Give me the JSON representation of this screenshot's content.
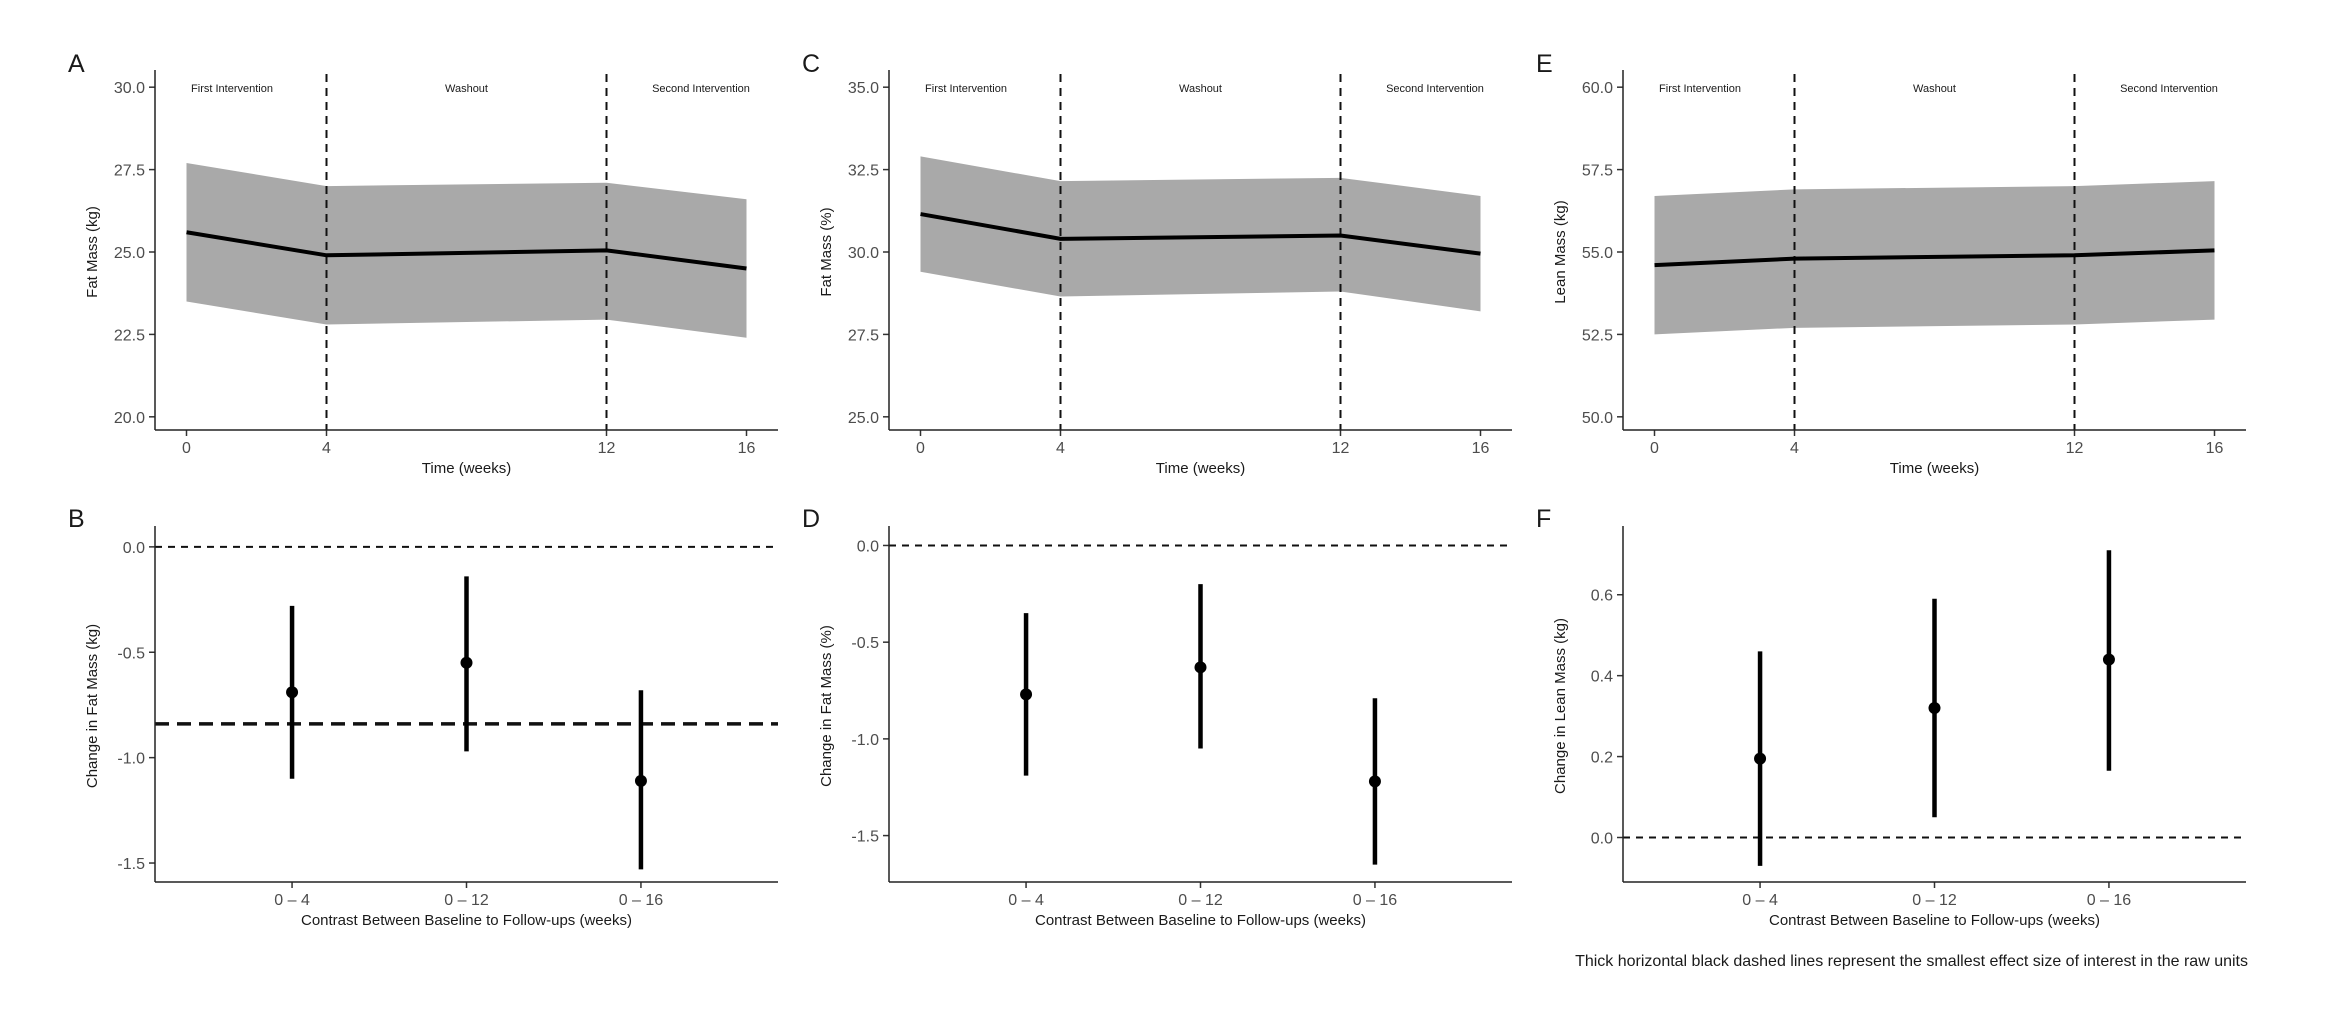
{
  "footnote": "Thick horizontal black dashed lines represent the smallest effect size of interest in the raw units",
  "chart_data": [
    {
      "panel": "A",
      "type": "line",
      "xlabel": "Time (weeks)",
      "ylabel": "Fat Mass (kg)",
      "x_ticks": [
        "0",
        "4",
        "12",
        "16"
      ],
      "y_ticks": [
        "20.0",
        "22.5",
        "25.0",
        "27.5",
        "30.0"
      ],
      "ylim": [
        19.6,
        30.4
      ],
      "xlim": [
        -0.9,
        16.9
      ],
      "phases": [
        "First Intervention",
        "Washout",
        "Second Intervention"
      ],
      "vlines": [
        4,
        12
      ],
      "x": [
        0,
        4,
        12,
        16
      ],
      "mean": [
        25.6,
        24.9,
        25.05,
        24.5
      ],
      "lower": [
        23.5,
        22.8,
        22.95,
        22.4
      ],
      "upper": [
        27.7,
        27.0,
        27.1,
        26.6
      ]
    },
    {
      "panel": "C",
      "type": "line",
      "xlabel": "Time (weeks)",
      "ylabel": "Fat Mass (%)",
      "x_ticks": [
        "0",
        "4",
        "12",
        "16"
      ],
      "y_ticks": [
        "25.0",
        "27.5",
        "30.0",
        "32.5",
        "35.0"
      ],
      "ylim": [
        24.6,
        35.4
      ],
      "xlim": [
        -0.9,
        16.9
      ],
      "phases": [
        "First Intervention",
        "Washout",
        "Second Intervention"
      ],
      "vlines": [
        4,
        12
      ],
      "x": [
        0,
        4,
        12,
        16
      ],
      "mean": [
        31.15,
        30.4,
        30.5,
        29.95
      ],
      "lower": [
        29.4,
        28.65,
        28.8,
        28.2
      ],
      "upper": [
        32.9,
        32.15,
        32.25,
        31.7
      ]
    },
    {
      "panel": "E",
      "type": "line",
      "xlabel": "Time (weeks)",
      "ylabel": "Lean Mass (kg)",
      "x_ticks": [
        "0",
        "4",
        "12",
        "16"
      ],
      "y_ticks": [
        "50.0",
        "52.5",
        "55.0",
        "57.5",
        "60.0"
      ],
      "ylim": [
        49.6,
        60.4
      ],
      "xlim": [
        -0.9,
        16.9
      ],
      "phases": [
        "First Intervention",
        "Washout",
        "Second Intervention"
      ],
      "vlines": [
        4,
        12
      ],
      "x": [
        0,
        4,
        12,
        16
      ],
      "mean": [
        54.6,
        54.8,
        54.9,
        55.05
      ],
      "lower": [
        52.5,
        52.7,
        52.8,
        52.95
      ],
      "upper": [
        56.7,
        56.9,
        57.0,
        57.15
      ]
    },
    {
      "panel": "B",
      "type": "scatter",
      "xlabel": "Contrast Between Baseline to Follow-ups (weeks)",
      "ylabel": "Change in Fat Mass (kg)",
      "categories": [
        "0 – 4",
        "0 – 12",
        "0 – 16"
      ],
      "y_ticks": [
        "-1.5",
        "-1.0",
        "-0.5",
        "0.0"
      ],
      "ylim": [
        -1.59,
        0.08
      ],
      "estimate": [
        -0.69,
        -0.55,
        -1.11
      ],
      "lower": [
        -1.1,
        -0.97,
        -1.53
      ],
      "upper": [
        -0.28,
        -0.14,
        -0.68
      ],
      "zero_line": 0,
      "sesoi_line": -0.84
    },
    {
      "panel": "D",
      "type": "scatter",
      "xlabel": "Contrast Between Baseline to Follow-ups (weeks)",
      "ylabel": "Change in Fat Mass (%)",
      "categories": [
        "0 – 4",
        "0 – 12",
        "0 – 16"
      ],
      "y_ticks": [
        "-1.5",
        "-1.0",
        "-0.5",
        "0.0"
      ],
      "ylim": [
        -1.74,
        0.08
      ],
      "estimate": [
        -0.77,
        -0.63,
        -1.22
      ],
      "lower": [
        -1.19,
        -1.05,
        -1.65
      ],
      "upper": [
        -0.35,
        -0.2,
        -0.79
      ],
      "zero_line": 0
    },
    {
      "panel": "F",
      "type": "scatter",
      "xlabel": "Contrast Between Baseline to Follow-ups (weeks)",
      "ylabel": "Change in Lean Mass (kg)",
      "categories": [
        "0 – 4",
        "0 – 12",
        "0 – 16"
      ],
      "y_ticks": [
        "0.0",
        "0.2",
        "0.4",
        "0.6"
      ],
      "ylim": [
        -0.11,
        0.76
      ],
      "estimate": [
        0.195,
        0.32,
        0.44
      ],
      "lower": [
        -0.07,
        0.05,
        0.165
      ],
      "upper": [
        0.46,
        0.59,
        0.71
      ],
      "zero_line": 0
    }
  ]
}
